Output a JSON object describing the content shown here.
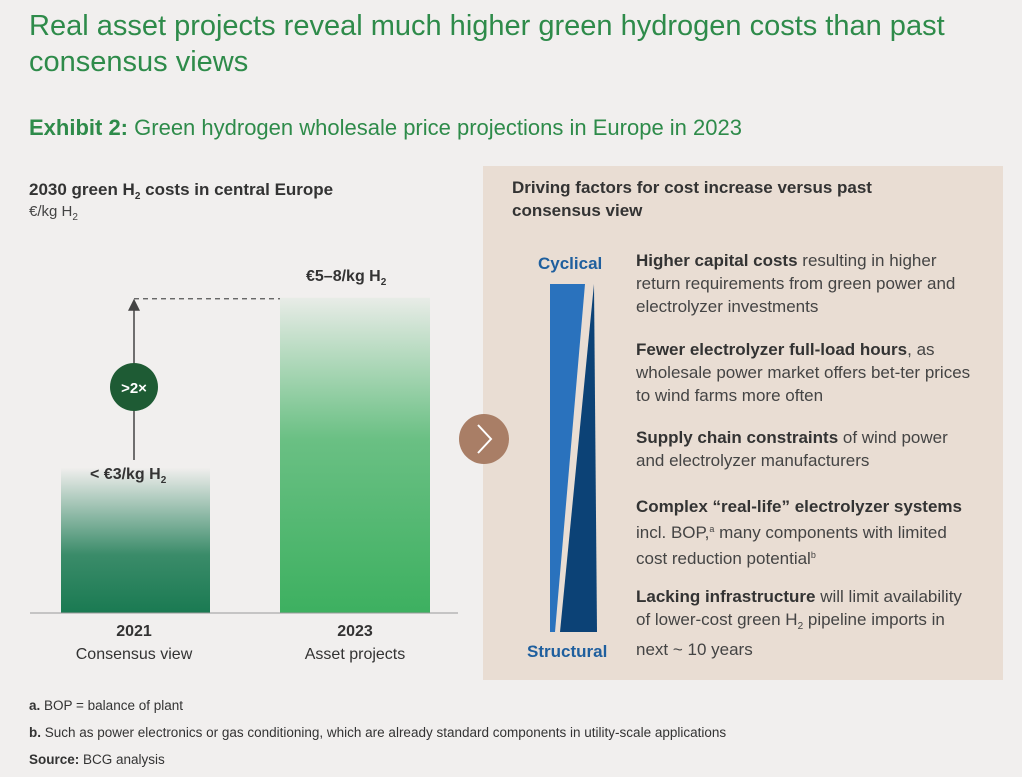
{
  "header": {
    "title": "Real asset projects reveal much higher green hydrogen costs than past consensus views",
    "exhibit_label": "Exhibit 2:",
    "exhibit_title": "Green hydrogen wholesale price projections in Europe in 2023"
  },
  "chart_data": {
    "type": "bar",
    "title_pre": "2030 green H",
    "title_sub": "2",
    "title_post": " costs in central Europe",
    "unit_pre": "€/kg H",
    "unit_sub": "2",
    "categories": [
      {
        "year": "2021",
        "label": "Consensus view"
      },
      {
        "year": "2023",
        "label": "Asset projects"
      }
    ],
    "values": [
      3,
      6.5
    ],
    "value_labels": [
      {
        "pre": "< €3/kg H",
        "sub": "2"
      },
      {
        "pre": "€5–8/kg H",
        "sub": "2"
      }
    ],
    "multiplier_label": ">2×",
    "colors": {
      "bar_2021": "#1a7a52",
      "bar_2023": "#3db060",
      "badge": "#1e5b34",
      "arrow_button": "#a97e66"
    }
  },
  "factors_panel": {
    "title": "Driving factors for cost increase versus past consensus view",
    "top_label": "Cyclical",
    "bottom_label": "Structural",
    "colors": {
      "light_wedge": "#2a72bd",
      "dark_wedge": "#0c4276",
      "label": "#1f5f9e"
    },
    "items": [
      {
        "bold": "Higher capital costs",
        "rest": " resulting in higher return requirements from green power and electrolyzer investments"
      },
      {
        "bold": "Fewer electrolyzer full-load hours",
        "rest": ", as wholesale power market offers bet-ter prices to wind farms more often"
      },
      {
        "bold": "Supply chain constraints",
        "rest": " of wind power and electrolyzer manufacturers"
      },
      {
        "bold": "Complex “real-life” electrolyzer systems",
        "mid": " incl. BOP,",
        "sup1": "a",
        "rest": " many components with limited cost reduction potential",
        "sup2": "b"
      },
      {
        "bold": "Lacking infrastructure",
        "rest": " will limit availability of lower-cost green H",
        "sub": "2",
        "rest2": " pipeline imports in next ~ 10 years"
      }
    ]
  },
  "footnotes": [
    {
      "label": "a.",
      "text": " BOP = balance of plant"
    },
    {
      "label": "b.",
      "text": " Such as power electronics or gas conditioning, which are already standard components in utility-scale applications"
    },
    {
      "label": "Source:",
      "text": " BCG analysis"
    }
  ]
}
